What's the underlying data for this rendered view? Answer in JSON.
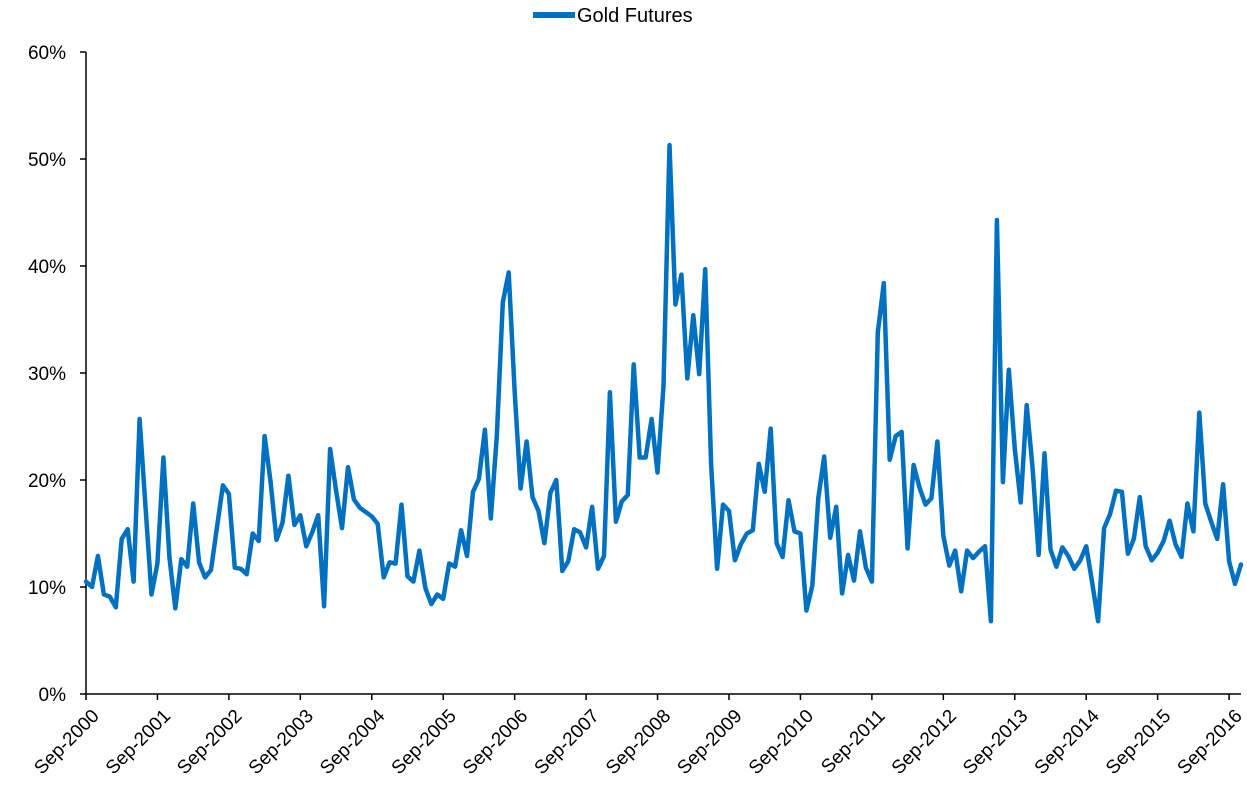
{
  "chart_data": {
    "type": "line",
    "title": "",
    "xlabel": "",
    "ylabel": "",
    "legend": {
      "placement": "top-center",
      "entries": [
        "Gold Futures"
      ]
    },
    "grid": false,
    "ylim": [
      0,
      0.6
    ],
    "xlim": [
      "2000-09",
      "2016-11"
    ],
    "y_ticks": [
      {
        "value": 0,
        "label": "0%"
      },
      {
        "value": 0.1,
        "label": "10%"
      },
      {
        "value": 0.2,
        "label": "20%"
      },
      {
        "value": 0.3,
        "label": "30%"
      },
      {
        "value": 0.4,
        "label": "40%"
      },
      {
        "value": 0.5,
        "label": "50%"
      },
      {
        "value": 0.6,
        "label": "60%"
      }
    ],
    "x_ticks": [
      {
        "value": "2000-09",
        "label": "Sep-2000"
      },
      {
        "value": "2001-09",
        "label": "Sep-2001"
      },
      {
        "value": "2002-09",
        "label": "Sep-2002"
      },
      {
        "value": "2003-09",
        "label": "Sep-2003"
      },
      {
        "value": "2004-09",
        "label": "Sep-2004"
      },
      {
        "value": "2005-09",
        "label": "Sep-2005"
      },
      {
        "value": "2006-09",
        "label": "Sep-2006"
      },
      {
        "value": "2007-09",
        "label": "Sep-2007"
      },
      {
        "value": "2008-09",
        "label": "Sep-2008"
      },
      {
        "value": "2009-09",
        "label": "Sep-2009"
      },
      {
        "value": "2010-09",
        "label": "Sep-2010"
      },
      {
        "value": "2011-09",
        "label": "Sep-2011"
      },
      {
        "value": "2012-09",
        "label": "Sep-2012"
      },
      {
        "value": "2013-09",
        "label": "Sep-2013"
      },
      {
        "value": "2014-09",
        "label": "Sep-2014"
      },
      {
        "value": "2015-09",
        "label": "Sep-2015"
      },
      {
        "value": "2016-09",
        "label": "Sep-2016"
      }
    ],
    "series": [
      {
        "name": "Gold Futures",
        "color": "#0070c0",
        "points": [
          [
            "2000-09",
            0.105
          ],
          [
            "2000-10",
            0.1
          ],
          [
            "2000-11",
            0.129
          ],
          [
            "2000-12",
            0.093
          ],
          [
            "2001-01",
            0.091
          ],
          [
            "2001-02",
            0.081
          ],
          [
            "2001-03",
            0.145
          ],
          [
            "2001-04",
            0.154
          ],
          [
            "2001-05",
            0.105
          ],
          [
            "2001-06",
            0.257
          ],
          [
            "2001-07",
            0.175
          ],
          [
            "2001-08",
            0.093
          ],
          [
            "2001-09",
            0.122
          ],
          [
            "2001-10",
            0.221
          ],
          [
            "2001-11",
            0.128
          ],
          [
            "2001-12",
            0.08
          ],
          [
            "2002-01",
            0.126
          ],
          [
            "2002-02",
            0.119
          ],
          [
            "2002-03",
            0.178
          ],
          [
            "2002-04",
            0.123
          ],
          [
            "2002-05",
            0.109
          ],
          [
            "2002-06",
            0.116
          ],
          [
            "2002-07",
            0.156
          ],
          [
            "2002-08",
            0.195
          ],
          [
            "2002-09",
            0.187
          ],
          [
            "2002-10",
            0.118
          ],
          [
            "2002-11",
            0.117
          ],
          [
            "2002-12",
            0.112
          ],
          [
            "2003-01",
            0.15
          ],
          [
            "2003-02",
            0.143
          ],
          [
            "2003-03",
            0.241
          ],
          [
            "2003-04",
            0.198
          ],
          [
            "2003-05",
            0.144
          ],
          [
            "2003-06",
            0.16
          ],
          [
            "2003-07",
            0.204
          ],
          [
            "2003-08",
            0.158
          ],
          [
            "2003-09",
            0.167
          ],
          [
            "2003-10",
            0.138
          ],
          [
            "2003-11",
            0.151
          ],
          [
            "2003-12",
            0.167
          ],
          [
            "2004-01",
            0.082
          ],
          [
            "2004-02",
            0.229
          ],
          [
            "2004-03",
            0.19
          ],
          [
            "2004-04",
            0.155
          ],
          [
            "2004-05",
            0.212
          ],
          [
            "2004-06",
            0.182
          ],
          [
            "2004-07",
            0.174
          ],
          [
            "2004-08",
            0.17
          ],
          [
            "2004-09",
            0.166
          ],
          [
            "2004-10",
            0.159
          ],
          [
            "2004-11",
            0.109
          ],
          [
            "2004-12",
            0.123
          ],
          [
            "2005-01",
            0.122
          ],
          [
            "2005-02",
            0.177
          ],
          [
            "2005-03",
            0.11
          ],
          [
            "2005-04",
            0.105
          ],
          [
            "2005-05",
            0.134
          ],
          [
            "2005-06",
            0.099
          ],
          [
            "2005-07",
            0.084
          ],
          [
            "2005-08",
            0.093
          ],
          [
            "2005-09",
            0.089
          ],
          [
            "2005-10",
            0.122
          ],
          [
            "2005-11",
            0.119
          ],
          [
            "2005-12",
            0.153
          ],
          [
            "2006-01",
            0.129
          ],
          [
            "2006-02",
            0.189
          ],
          [
            "2006-03",
            0.201
          ],
          [
            "2006-04",
            0.247
          ],
          [
            "2006-05",
            0.164
          ],
          [
            "2006-06",
            0.241
          ],
          [
            "2006-07",
            0.366
          ],
          [
            "2006-08",
            0.394
          ],
          [
            "2006-09",
            0.282
          ],
          [
            "2006-10",
            0.192
          ],
          [
            "2006-11",
            0.236
          ],
          [
            "2006-12",
            0.184
          ],
          [
            "2007-01",
            0.171
          ],
          [
            "2007-02",
            0.141
          ],
          [
            "2007-03",
            0.188
          ],
          [
            "2007-04",
            0.2
          ],
          [
            "2007-05",
            0.115
          ],
          [
            "2007-06",
            0.124
          ],
          [
            "2007-07",
            0.154
          ],
          [
            "2007-08",
            0.151
          ],
          [
            "2007-09",
            0.137
          ],
          [
            "2007-10",
            0.175
          ],
          [
            "2007-11",
            0.117
          ],
          [
            "2007-12",
            0.129
          ],
          [
            "2008-01",
            0.282
          ],
          [
            "2008-02",
            0.161
          ],
          [
            "2008-03",
            0.18
          ],
          [
            "2008-04",
            0.186
          ],
          [
            "2008-05",
            0.308
          ],
          [
            "2008-06",
            0.221
          ],
          [
            "2008-07",
            0.221
          ],
          [
            "2008-08",
            0.257
          ],
          [
            "2008-09",
            0.207
          ],
          [
            "2008-10",
            0.288
          ],
          [
            "2008-11",
            0.513
          ],
          [
            "2008-12",
            0.364
          ],
          [
            "2009-01",
            0.392
          ],
          [
            "2009-02",
            0.295
          ],
          [
            "2009-03",
            0.354
          ],
          [
            "2009-04",
            0.299
          ],
          [
            "2009-05",
            0.397
          ],
          [
            "2009-06",
            0.215
          ],
          [
            "2009-07",
            0.117
          ],
          [
            "2009-08",
            0.177
          ],
          [
            "2009-09",
            0.171
          ],
          [
            "2009-10",
            0.125
          ],
          [
            "2009-11",
            0.14
          ],
          [
            "2009-12",
            0.15
          ],
          [
            "2010-01",
            0.153
          ],
          [
            "2010-02",
            0.215
          ],
          [
            "2010-03",
            0.189
          ],
          [
            "2010-04",
            0.248
          ],
          [
            "2010-05",
            0.141
          ],
          [
            "2010-06",
            0.128
          ],
          [
            "2010-07",
            0.181
          ],
          [
            "2010-08",
            0.152
          ],
          [
            "2010-09",
            0.15
          ],
          [
            "2010-10",
            0.078
          ],
          [
            "2010-11",
            0.101
          ],
          [
            "2010-12",
            0.183
          ],
          [
            "2011-01",
            0.222
          ],
          [
            "2011-02",
            0.146
          ],
          [
            "2011-03",
            0.175
          ],
          [
            "2011-04",
            0.094
          ],
          [
            "2011-05",
            0.13
          ],
          [
            "2011-06",
            0.106
          ],
          [
            "2011-07",
            0.152
          ],
          [
            "2011-08",
            0.118
          ],
          [
            "2011-09",
            0.105
          ],
          [
            "2011-10",
            0.338
          ],
          [
            "2011-11",
            0.384
          ],
          [
            "2011-12",
            0.219
          ],
          [
            "2012-01",
            0.241
          ],
          [
            "2012-02",
            0.245
          ],
          [
            "2012-03",
            0.136
          ],
          [
            "2012-04",
            0.214
          ],
          [
            "2012-05",
            0.193
          ],
          [
            "2012-06",
            0.177
          ],
          [
            "2012-07",
            0.183
          ],
          [
            "2012-08",
            0.236
          ],
          [
            "2012-09",
            0.148
          ],
          [
            "2012-10",
            0.12
          ],
          [
            "2012-11",
            0.134
          ],
          [
            "2012-12",
            0.096
          ],
          [
            "2013-01",
            0.134
          ],
          [
            "2013-02",
            0.127
          ],
          [
            "2013-03",
            0.133
          ],
          [
            "2013-04",
            0.138
          ],
          [
            "2013-05",
            0.068
          ],
          [
            "2013-06",
            0.443
          ],
          [
            "2013-07",
            0.198
          ],
          [
            "2013-08",
            0.303
          ],
          [
            "2013-09",
            0.229
          ],
          [
            "2013-10",
            0.179
          ],
          [
            "2013-11",
            0.27
          ],
          [
            "2013-12",
            0.211
          ],
          [
            "2014-01",
            0.13
          ],
          [
            "2014-02",
            0.225
          ],
          [
            "2014-03",
            0.135
          ],
          [
            "2014-04",
            0.119
          ],
          [
            "2014-05",
            0.137
          ],
          [
            "2014-06",
            0.129
          ],
          [
            "2014-07",
            0.117
          ],
          [
            "2014-08",
            0.125
          ],
          [
            "2014-09",
            0.138
          ],
          [
            "2014-10",
            0.104
          ],
          [
            "2014-11",
            0.068
          ],
          [
            "2014-12",
            0.155
          ],
          [
            "2015-01",
            0.168
          ],
          [
            "2015-02",
            0.19
          ],
          [
            "2015-03",
            0.189
          ],
          [
            "2015-04",
            0.131
          ],
          [
            "2015-05",
            0.145
          ],
          [
            "2015-06",
            0.184
          ],
          [
            "2015-07",
            0.138
          ],
          [
            "2015-08",
            0.125
          ],
          [
            "2015-09",
            0.132
          ],
          [
            "2015-10",
            0.143
          ],
          [
            "2015-11",
            0.162
          ],
          [
            "2015-12",
            0.14
          ],
          [
            "2016-01",
            0.128
          ],
          [
            "2016-02",
            0.178
          ],
          [
            "2016-03",
            0.152
          ],
          [
            "2016-04",
            0.263
          ],
          [
            "2016-05",
            0.178
          ],
          [
            "2016-06",
            0.161
          ],
          [
            "2016-07",
            0.145
          ],
          [
            "2016-08",
            0.196
          ],
          [
            "2016-09",
            0.124
          ],
          [
            "2016-10",
            0.103
          ],
          [
            "2016-11",
            0.121
          ]
        ]
      }
    ]
  }
}
